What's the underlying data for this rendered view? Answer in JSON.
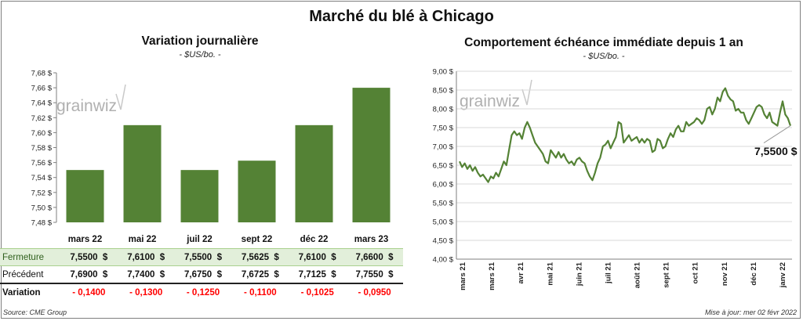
{
  "title": "Marché du blé à Chicago",
  "left_panel": {
    "title": "Variation journalière",
    "unit": "- $US/bo. -",
    "watermark": "grainwiz"
  },
  "right_panel": {
    "title": "Comportement  échéance immédiate depuis 1 an",
    "unit": "- $US/bo. -",
    "watermark": "grainwiz",
    "last_value_label": "7,5500 $"
  },
  "table": {
    "row_labels": [
      "Fermeture",
      "Précédent",
      "Variation"
    ],
    "fermeture": [
      "7,5500  $",
      "7,6100  $",
      "7,5500  $",
      "7,5625  $",
      "7,6100  $",
      "7,6600  $"
    ],
    "precedent": [
      "7,6900  $",
      "7,7400  $",
      "7,6750  $",
      "7,6725  $",
      "7,7125  $",
      "7,7550  $"
    ],
    "variation": [
      "- 0,1400",
      "- 0,1300",
      "- 0,1250",
      "- 0,1100",
      "- 0,1025",
      "- 0,0950"
    ]
  },
  "footer": {
    "source": "Source: CME Group",
    "updated": "Mise à jour: mer 02 févr 2022"
  },
  "colors": {
    "bar": "#548235",
    "line": "#548235",
    "grid": "#d9d9d9",
    "negative": "#ff0000"
  },
  "chart_data": [
    {
      "type": "bar",
      "title": "Variation journalière",
      "ylabel": "- $US/bo. -",
      "categories": [
        "mars 22",
        "mai 22",
        "juil 22",
        "sept 22",
        "déc 22",
        "mars 23"
      ],
      "values": [
        7.55,
        7.61,
        7.55,
        7.5625,
        7.61,
        7.66
      ],
      "ylim": [
        7.48,
        7.68
      ],
      "yticks": [
        "7,48 $",
        "7,50 $",
        "7,52 $",
        "7,54 $",
        "7,56 $",
        "7,58 $",
        "7,60 $",
        "7,62 $",
        "7,64 $",
        "7,66 $",
        "7,68 $"
      ],
      "grid": false
    },
    {
      "type": "line",
      "title": "Comportement  échéance immédiate depuis 1 an",
      "ylabel": "- $US/bo. -",
      "x_ticks": [
        "mars 21",
        "mars 21",
        "avr 21",
        "mai 21",
        "juin 21",
        "juil 21",
        "août 21",
        "sept 21",
        "oct 21",
        "nov 21",
        "déc 21",
        "janv 22"
      ],
      "yticks": [
        "4,00 $",
        "4,50 $",
        "5,00 $",
        "5,50 $",
        "6,00 $",
        "6,50 $",
        "7,00 $",
        "7,50 $",
        "8,00 $",
        "8,50 $",
        "9,00 $"
      ],
      "ylim": [
        4.0,
        9.0
      ],
      "grid": true,
      "series": [
        {
          "values": [
            6.6,
            6.45,
            6.55,
            6.4,
            6.5,
            6.35,
            6.45,
            6.3,
            6.2,
            6.25,
            6.15,
            6.05,
            6.2,
            6.15,
            6.3,
            6.2,
            6.4,
            6.6,
            6.5,
            6.9,
            7.3,
            7.4,
            7.3,
            7.35,
            7.2,
            7.5,
            7.65,
            7.5,
            7.3,
            7.1,
            7.0,
            6.9,
            6.8,
            6.6,
            6.55,
            6.9,
            6.8,
            6.7,
            6.85,
            6.7,
            6.8,
            6.65,
            6.55,
            6.6,
            6.5,
            6.65,
            6.7,
            6.6,
            6.55,
            6.35,
            6.2,
            6.1,
            6.3,
            6.55,
            6.7,
            7.0,
            7.05,
            7.15,
            6.95,
            7.1,
            7.25,
            7.65,
            7.6,
            7.1,
            7.2,
            7.3,
            7.15,
            7.2,
            7.25,
            7.1,
            7.2,
            7.1,
            7.2,
            7.15,
            6.85,
            6.9,
            7.2,
            7.15,
            6.95,
            7.0,
            7.2,
            7.35,
            7.25,
            7.45,
            7.55,
            7.4,
            7.4,
            7.65,
            7.55,
            7.6,
            7.65,
            7.75,
            7.7,
            7.6,
            7.7,
            8.0,
            8.05,
            7.85,
            8.0,
            8.3,
            8.2,
            8.45,
            8.55,
            8.35,
            8.25,
            8.2,
            7.95,
            8.0,
            7.9,
            7.9,
            7.7,
            7.6,
            7.75,
            7.9,
            8.05,
            8.1,
            8.05,
            7.85,
            7.75,
            7.9,
            7.65,
            7.6,
            7.55,
            7.9,
            8.2,
            7.85,
            7.75,
            7.55
          ]
        }
      ]
    }
  ]
}
